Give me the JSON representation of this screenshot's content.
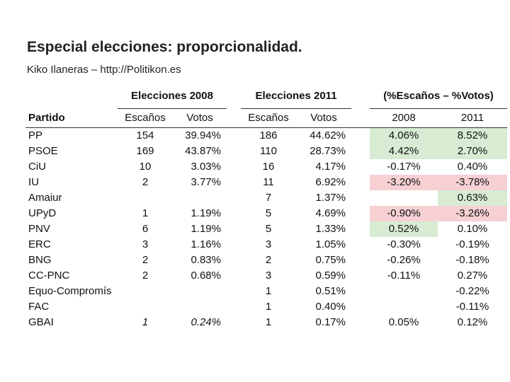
{
  "title": "Especial elecciones: proporcionalidad.",
  "subtitle": "Kiko Ilaneras – http://Politikon.es",
  "headers": {
    "group_2008": "Elecciones 2008",
    "group_2011": "Elecciones 2011",
    "group_diff": "(%Escaños – %Votos)",
    "partido": "Partido",
    "escanos_2008": "Escaños",
    "votos_2008": "Votos",
    "escanos_2011": "Escaños",
    "votos_2011": "Votos",
    "diff_2008": "2008",
    "diff_2011": "2011"
  },
  "colors": {
    "positive": "#d8ecd3",
    "negative": "#f6d0d3"
  },
  "rows": [
    {
      "partido": "PP",
      "e2008": "154",
      "v2008": "39.94%",
      "e2011": "186",
      "v2011": "44.62%",
      "d2008": "4.06%",
      "d2011": "8.52%",
      "h2008": "green",
      "h2011": "green"
    },
    {
      "partido": "PSOE",
      "e2008": "169",
      "v2008": "43.87%",
      "e2011": "110",
      "v2011": "28.73%",
      "d2008": "4.42%",
      "d2011": "2.70%",
      "h2008": "green",
      "h2011": "green"
    },
    {
      "partido": "CiU",
      "e2008": "10",
      "v2008": "3.03%",
      "e2011": "16",
      "v2011": "4.17%",
      "d2008": "-0.17%",
      "d2011": "0.40%",
      "h2008": "",
      "h2011": ""
    },
    {
      "partido": "IU",
      "e2008": "2",
      "v2008": "3.77%",
      "e2011": "11",
      "v2011": "6.92%",
      "d2008": "-3.20%",
      "d2011": "-3.78%",
      "h2008": "red",
      "h2011": "red"
    },
    {
      "partido": "Amaiur",
      "e2008": "",
      "v2008": "",
      "e2011": "7",
      "v2011": "1.37%",
      "d2008": "",
      "d2011": "0.63%",
      "h2008": "",
      "h2011": "green"
    },
    {
      "partido": "UPyD",
      "e2008": "1",
      "v2008": "1.19%",
      "e2011": "5",
      "v2011": "4.69%",
      "d2008": "-0.90%",
      "d2011": "-3.26%",
      "h2008": "red",
      "h2011": "red"
    },
    {
      "partido": "PNV",
      "e2008": "6",
      "v2008": "1.19%",
      "e2011": "5",
      "v2011": "1.33%",
      "d2008": "0.52%",
      "d2011": "0.10%",
      "h2008": "green",
      "h2011": ""
    },
    {
      "partido": "ERC",
      "e2008": "3",
      "v2008": "1.16%",
      "e2011": "3",
      "v2011": "1.05%",
      "d2008": "-0.30%",
      "d2011": "-0.19%",
      "h2008": "",
      "h2011": ""
    },
    {
      "partido": "BNG",
      "e2008": "2",
      "v2008": "0.83%",
      "e2011": "2",
      "v2011": "0.75%",
      "d2008": "-0.26%",
      "d2011": "-0.18%",
      "h2008": "",
      "h2011": ""
    },
    {
      "partido": "CC-PNC",
      "e2008": "2",
      "v2008": "0.68%",
      "e2011": "3",
      "v2011": "0.59%",
      "d2008": "-0.11%",
      "d2011": "0.27%",
      "h2008": "",
      "h2011": ""
    },
    {
      "partido": "Equo-Compromís",
      "e2008": "",
      "v2008": "",
      "e2011": "1",
      "v2011": "0.51%",
      "d2008": "",
      "d2011": "-0.22%",
      "h2008": "",
      "h2011": ""
    },
    {
      "partido": "FAC",
      "e2008": "",
      "v2008": "",
      "e2011": "1",
      "v2011": "0.40%",
      "d2008": "",
      "d2011": "-0.11%",
      "h2008": "",
      "h2011": ""
    },
    {
      "partido": "GBAI",
      "e2008": "1",
      "v2008": "0.24%",
      "e2011": "1",
      "v2011": "0.17%",
      "d2008": "0.05%",
      "d2011": "0.12%",
      "h2008": "",
      "h2011": "",
      "italic2008": true
    }
  ]
}
